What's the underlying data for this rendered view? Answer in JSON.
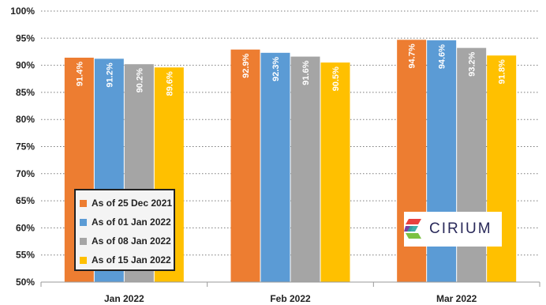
{
  "chart_data": {
    "type": "bar",
    "categories": [
      "Jan 2022",
      "Feb 2022",
      "Mar 2022"
    ],
    "series": [
      {
        "name": "As of 25 Dec 2021",
        "color": "#ED7D31",
        "values": [
          91.4,
          92.9,
          94.7
        ],
        "labels": [
          "91.4%",
          "92.9%",
          "94.7%"
        ]
      },
      {
        "name": "As of 01 Jan 2022",
        "color": "#5B9BD5",
        "values": [
          91.2,
          92.3,
          94.6
        ],
        "labels": [
          "91.2%",
          "92.3%",
          "94.6%"
        ]
      },
      {
        "name": "As of 08 Jan 2022",
        "color": "#A5A5A5",
        "values": [
          90.2,
          91.6,
          93.2
        ],
        "labels": [
          "90.2%",
          "91.6%",
          "93.2%"
        ]
      },
      {
        "name": "As of 15 Jan 2022",
        "color": "#FFC000",
        "values": [
          89.6,
          90.5,
          91.8
        ],
        "labels": [
          "89.6%",
          "90.5%",
          "91.8%"
        ]
      }
    ],
    "yticks": [
      "50%",
      "55%",
      "60%",
      "65%",
      "70%",
      "75%",
      "80%",
      "85%",
      "90%",
      "95%",
      "100%"
    ],
    "ylim": [
      50,
      100
    ],
    "grid": true,
    "legend_position": "bottom-left"
  },
  "logo": {
    "text": "CIRIUM",
    "icon": "cirium-logo-icon"
  }
}
